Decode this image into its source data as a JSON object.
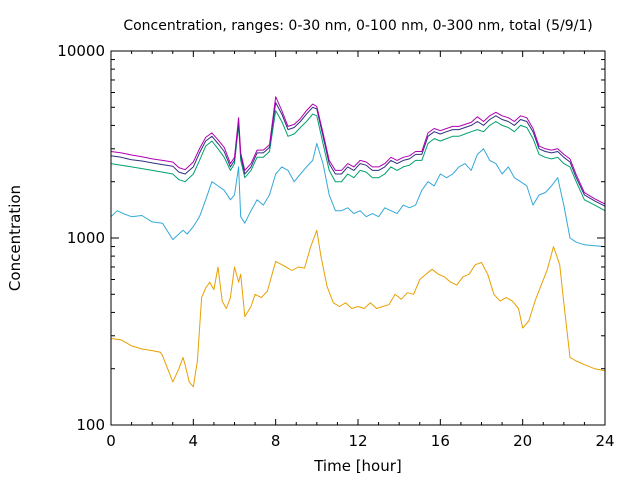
{
  "chart_data": {
    "type": "line",
    "title": "Concentration, ranges: 0-30 nm, 0-100 nm, 0-300 nm, total (5/9/1)",
    "xlabel": "Time [hour]",
    "ylabel": "Concentration",
    "xlim": [
      0,
      24
    ],
    "ylim": [
      100,
      10000
    ],
    "yscale": "log",
    "grid": false,
    "xticks": [
      0,
      4,
      8,
      12,
      16,
      20,
      24
    ],
    "xtick_labels": [
      "0",
      "4",
      "8",
      "12",
      "16",
      "20",
      "24"
    ],
    "yticks": [
      100,
      1000,
      10000
    ],
    "ytick_labels": [
      "100",
      "1000",
      "10000"
    ],
    "series": [
      {
        "color": "#e8a000",
        "x": [
          0,
          0.5,
          1,
          1.5,
          2,
          2.4,
          2.5,
          3,
          3.3,
          3.5,
          3.6,
          3.8,
          4,
          4.2,
          4.4,
          4.6,
          4.8,
          5,
          5.2,
          5.4,
          5.6,
          5.8,
          6,
          6.2,
          6.3,
          6.5,
          6.8,
          7,
          7.3,
          7.6,
          8,
          8.2,
          8.5,
          8.8,
          9.1,
          9.4,
          9.7,
          10,
          10.2,
          10.5,
          10.8,
          11.1,
          11.4,
          11.7,
          12,
          12.3,
          12.6,
          12.9,
          13.2,
          13.5,
          13.8,
          14.1,
          14.4,
          14.7,
          15,
          15.3,
          15.6,
          15.9,
          16.2,
          16.5,
          16.8,
          17.1,
          17.4,
          17.7,
          18,
          18.3,
          18.6,
          18.9,
          19.2,
          19.5,
          19.8,
          20,
          20.3,
          20.6,
          20.9,
          21.2,
          21.5,
          21.8,
          22,
          22.3,
          22.6,
          23,
          23.5,
          24
        ],
        "values": [
          290,
          285,
          265,
          255,
          250,
          245,
          235,
          170,
          200,
          230,
          210,
          170,
          160,
          220,
          480,
          540,
          580,
          530,
          700,
          460,
          420,
          480,
          700,
          580,
          640,
          380,
          430,
          500,
          480,
          520,
          750,
          730,
          700,
          670,
          700,
          690,
          900,
          1100,
          800,
          550,
          450,
          430,
          450,
          420,
          430,
          420,
          450,
          420,
          430,
          440,
          500,
          470,
          510,
          500,
          600,
          640,
          680,
          640,
          620,
          580,
          560,
          620,
          640,
          720,
          740,
          640,
          500,
          460,
          480,
          460,
          420,
          330,
          360,
          460,
          560,
          680,
          900,
          720,
          450,
          230,
          220,
          210,
          200,
          195
        ]
      },
      {
        "color": "#35a8d8",
        "x": [
          0,
          0.3,
          0.6,
          1,
          1.5,
          2,
          2.5,
          3,
          3.3,
          3.5,
          3.7,
          4,
          4.3,
          4.6,
          4.9,
          5.2,
          5.5,
          5.8,
          6,
          6.2,
          6.3,
          6.5,
          6.8,
          7.1,
          7.4,
          7.7,
          8,
          8.3,
          8.6,
          8.9,
          9.2,
          9.5,
          9.8,
          10,
          10.3,
          10.6,
          10.9,
          11.2,
          11.5,
          11.8,
          12.1,
          12.4,
          12.7,
          13,
          13.3,
          13.6,
          13.9,
          14.2,
          14.5,
          14.8,
          15.1,
          15.4,
          15.7,
          16,
          16.3,
          16.6,
          16.9,
          17.2,
          17.5,
          17.8,
          18.1,
          18.4,
          18.7,
          19,
          19.3,
          19.6,
          19.9,
          20.2,
          20.5,
          20.8,
          21.1,
          21.4,
          21.7,
          22,
          22.3,
          22.6,
          23,
          23.5,
          24
        ],
        "values": [
          1300,
          1400,
          1350,
          1300,
          1320,
          1220,
          1200,
          980,
          1050,
          1100,
          1050,
          1150,
          1300,
          1600,
          2000,
          1900,
          1800,
          1600,
          1700,
          2400,
          1300,
          1200,
          1400,
          1600,
          1500,
          1700,
          2200,
          2400,
          2300,
          2000,
          2200,
          2400,
          2600,
          3200,
          2500,
          1700,
          1400,
          1400,
          1450,
          1350,
          1400,
          1300,
          1350,
          1300,
          1450,
          1400,
          1350,
          1500,
          1450,
          1500,
          1800,
          2000,
          1900,
          2200,
          2100,
          2200,
          2400,
          2500,
          2300,
          2800,
          3000,
          2600,
          2500,
          2200,
          2400,
          2100,
          2000,
          1900,
          1500,
          1700,
          1750,
          1900,
          2100,
          1500,
          1000,
          950,
          920,
          910,
          900
        ]
      },
      {
        "color": "#00a070",
        "x": [
          0,
          0.5,
          1,
          1.5,
          2,
          2.5,
          3,
          3.3,
          3.6,
          4,
          4.3,
          4.6,
          4.9,
          5.2,
          5.5,
          5.8,
          6,
          6.2,
          6.3,
          6.5,
          6.8,
          7.1,
          7.4,
          7.7,
          8,
          8.3,
          8.6,
          8.9,
          9.2,
          9.5,
          9.8,
          10,
          10.3,
          10.6,
          10.9,
          11.2,
          11.5,
          11.8,
          12.1,
          12.4,
          12.7,
          13,
          13.3,
          13.6,
          13.9,
          14.2,
          14.5,
          14.8,
          15.1,
          15.4,
          15.7,
          16,
          16.3,
          16.6,
          16.9,
          17.2,
          17.5,
          17.8,
          18.1,
          18.4,
          18.7,
          19,
          19.3,
          19.6,
          19.9,
          20.2,
          20.5,
          20.8,
          21.1,
          21.4,
          21.7,
          22,
          22.3,
          22.6,
          23,
          23.5,
          24
        ],
        "values": [
          2500,
          2450,
          2400,
          2350,
          2300,
          2250,
          2200,
          2050,
          2000,
          2200,
          2600,
          3100,
          3300,
          3000,
          2700,
          2300,
          2500,
          4000,
          2600,
          2100,
          2300,
          2700,
          2700,
          2900,
          4800,
          4200,
          3500,
          3600,
          3900,
          4200,
          4600,
          4500,
          3200,
          2300,
          2000,
          2000,
          2200,
          2100,
          2300,
          2250,
          2100,
          2100,
          2200,
          2400,
          2300,
          2400,
          2450,
          2600,
          2600,
          3200,
          3400,
          3300,
          3400,
          3500,
          3500,
          3600,
          3700,
          3800,
          3700,
          4000,
          4200,
          4000,
          3900,
          3700,
          4000,
          3900,
          3400,
          2800,
          2700,
          2650,
          2700,
          2500,
          2400,
          2000,
          1600,
          1500,
          1400
        ]
      },
      {
        "color": "#303080",
        "x": [
          0,
          0.5,
          1,
          1.5,
          2,
          2.5,
          3,
          3.3,
          3.6,
          4,
          4.3,
          4.6,
          4.9,
          5.2,
          5.5,
          5.8,
          6,
          6.2,
          6.3,
          6.5,
          6.8,
          7.1,
          7.4,
          7.7,
          8,
          8.3,
          8.6,
          8.9,
          9.2,
          9.5,
          9.8,
          10,
          10.3,
          10.6,
          10.9,
          11.2,
          11.5,
          11.8,
          12.1,
          12.4,
          12.7,
          13,
          13.3,
          13.6,
          13.9,
          14.2,
          14.5,
          14.8,
          15.1,
          15.4,
          15.7,
          16,
          16.3,
          16.6,
          16.9,
          17.2,
          17.5,
          17.8,
          18.1,
          18.4,
          18.7,
          19,
          19.3,
          19.6,
          19.9,
          20.2,
          20.5,
          20.8,
          21.1,
          21.4,
          21.7,
          22,
          22.3,
          22.6,
          23,
          23.5,
          24
        ],
        "values": [
          2750,
          2700,
          2620,
          2580,
          2520,
          2470,
          2420,
          2250,
          2200,
          2400,
          2850,
          3300,
          3500,
          3200,
          2900,
          2400,
          2600,
          4200,
          2750,
          2200,
          2400,
          2850,
          2850,
          3050,
          5300,
          4600,
          3800,
          3900,
          4200,
          4600,
          5000,
          4900,
          3500,
          2500,
          2200,
          2200,
          2400,
          2300,
          2500,
          2450,
          2300,
          2300,
          2400,
          2600,
          2500,
          2600,
          2650,
          2800,
          2800,
          3500,
          3700,
          3600,
          3700,
          3800,
          3800,
          3900,
          4000,
          4200,
          4000,
          4300,
          4500,
          4300,
          4200,
          4000,
          4300,
          4200,
          3700,
          3000,
          2900,
          2850,
          2900,
          2700,
          2550,
          2100,
          1700,
          1580,
          1480
        ]
      },
      {
        "color": "#b000b0",
        "x": [
          0,
          0.5,
          1,
          1.5,
          2,
          2.5,
          3,
          3.3,
          3.6,
          4,
          4.3,
          4.6,
          4.9,
          5.2,
          5.5,
          5.8,
          6,
          6.2,
          6.3,
          6.5,
          6.8,
          7.1,
          7.4,
          7.7,
          8,
          8.3,
          8.6,
          8.9,
          9.2,
          9.5,
          9.8,
          10,
          10.3,
          10.6,
          10.9,
          11.2,
          11.5,
          11.8,
          12.1,
          12.4,
          12.7,
          13,
          13.3,
          13.6,
          13.9,
          14.2,
          14.5,
          14.8,
          15.1,
          15.4,
          15.7,
          16,
          16.3,
          16.6,
          16.9,
          17.2,
          17.5,
          17.8,
          18.1,
          18.4,
          18.7,
          19,
          19.3,
          19.6,
          19.9,
          20.2,
          20.5,
          20.8,
          21.1,
          21.4,
          21.7,
          22,
          22.3,
          22.6,
          23,
          23.5,
          24
        ],
        "values": [
          2900,
          2850,
          2780,
          2720,
          2650,
          2600,
          2550,
          2380,
          2320,
          2550,
          3000,
          3450,
          3650,
          3350,
          3050,
          2500,
          2700,
          4400,
          2850,
          2300,
          2500,
          2950,
          2950,
          3150,
          5700,
          4800,
          3950,
          4050,
          4350,
          4800,
          5200,
          5050,
          3650,
          2600,
          2300,
          2300,
          2500,
          2400,
          2600,
          2550,
          2400,
          2400,
          2500,
          2700,
          2600,
          2700,
          2750,
          2900,
          2900,
          3650,
          3850,
          3750,
          3850,
          3950,
          3950,
          4050,
          4150,
          4450,
          4200,
          4500,
          4700,
          4500,
          4400,
          4200,
          4500,
          4400,
          3850,
          3100,
          3000,
          2950,
          3000,
          2800,
          2650,
          2180,
          1750,
          1620,
          1520
        ]
      }
    ]
  }
}
